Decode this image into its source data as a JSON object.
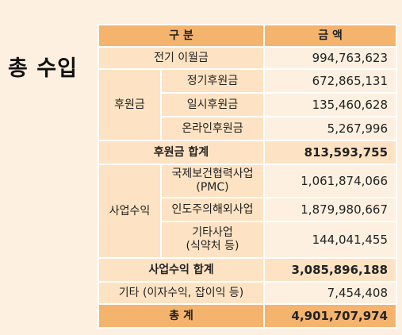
{
  "side_title": "총 수입",
  "header": {
    "category": "구 분",
    "amount": "금 액"
  },
  "rows": {
    "electricity": {
      "label": "전기 이월금",
      "amount": "994,763,623"
    },
    "donation_group": "후원금",
    "donation_regular": {
      "label": "정기후원금",
      "amount": "672,865,131"
    },
    "donation_onetime": {
      "label": "일시후원금",
      "amount": "135,460,628"
    },
    "donation_online": {
      "label": "온라인후원금",
      "amount": "5,267,996"
    },
    "donation_total": {
      "label": "후원금 합계",
      "amount": "813,593,755"
    },
    "business_group": "사업수익",
    "business_pmc": {
      "label_line1": "국제보건협력사업",
      "label_line2": "(PMC)",
      "amount": "1,061,874,066"
    },
    "business_india": {
      "label": "인도주의해외사업",
      "amount": "1,879,980,667"
    },
    "business_other": {
      "label_line1": "기타사업",
      "label_line2": "(식약처 등)",
      "amount": "144,041,455"
    },
    "business_total": {
      "label": "사업수익 합계",
      "amount": "3,085,896,188"
    },
    "other": {
      "label": "기타 (이자수익, 잡이익 등)",
      "amount": "7,454,408"
    },
    "grand_total": {
      "label": "총 계",
      "amount": "4,901,707,974"
    }
  }
}
